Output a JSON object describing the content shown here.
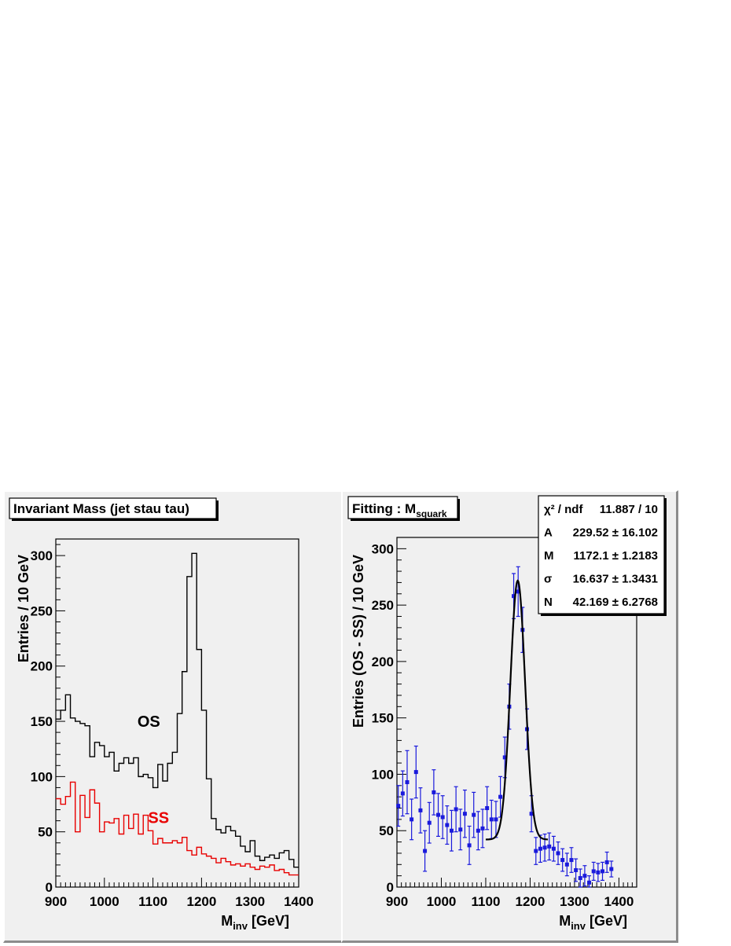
{
  "chart_data": [
    {
      "type": "step-histogram",
      "title": "Invariant Mass (jet stau tau)",
      "xlabel": "M",
      "xlabel_sub": "inv",
      "xlabel_unit": " [GeV]",
      "ylabel": "Entries / 10 GeV",
      "xlim": [
        900,
        1400
      ],
      "ylim": [
        0,
        315
      ],
      "xticks": [
        "900",
        "1000",
        "1100",
        "1200",
        "1300",
        "1400"
      ],
      "yticks": [
        "0",
        "50",
        "100",
        "150",
        "200",
        "250",
        "300"
      ],
      "bin_width": 10,
      "x_start": 900,
      "series": [
        {
          "name": "OS",
          "color": "#000000",
          "values": [
            152,
            160,
            174,
            153,
            150,
            148,
            146,
            118,
            131,
            128,
            118,
            122,
            105,
            112,
            117,
            112,
            117,
            100,
            102,
            99,
            90,
            111,
            96,
            112,
            122,
            157,
            195,
            281,
            302,
            215,
            160,
            98,
            62,
            52,
            49,
            55,
            51,
            46,
            37,
            32,
            42,
            28,
            24,
            27,
            29,
            26,
            31,
            33,
            25,
            18
          ]
        },
        {
          "name": "SS",
          "color": "#e80000",
          "values": [
            80,
            75,
            82,
            95,
            50,
            83,
            63,
            88,
            76,
            50,
            59,
            58,
            62,
            48,
            65,
            53,
            66,
            48,
            65,
            51,
            39,
            44,
            40,
            40,
            42,
            40,
            45,
            33,
            29,
            36,
            30,
            28,
            26,
            22,
            26,
            23,
            20,
            21,
            19,
            21,
            18,
            16,
            19,
            18,
            20,
            15,
            16,
            13,
            11,
            11
          ]
        }
      ],
      "labels": [
        {
          "text": "OS",
          "color": "#000000",
          "x": 1068,
          "y": 145
        },
        {
          "text": "SS",
          "color": "#e80000",
          "x": 1090,
          "y": 58
        }
      ]
    },
    {
      "type": "scatter-errorbar-fit",
      "title": "Fitting : M",
      "title_sub": "squark",
      "xlabel": "M",
      "xlabel_sub": "inv",
      "xlabel_unit": " [GeV]",
      "ylabel": "Entries (OS - SS) / 10 GeV",
      "xlim": [
        900,
        1440
      ],
      "ylim": [
        0,
        310
      ],
      "xticks": [
        "900",
        "1000",
        "1100",
        "1200",
        "1300",
        "1400"
      ],
      "yticks": [
        "0",
        "50",
        "100",
        "150",
        "200",
        "250",
        "300"
      ],
      "point_color": "#1a1adc",
      "points": [
        [
          903,
          72,
          18
        ],
        [
          913,
          83,
          20
        ],
        [
          923,
          93,
          28
        ],
        [
          933,
          60,
          18
        ],
        [
          943,
          102,
          23
        ],
        [
          953,
          68,
          20
        ],
        [
          963,
          32,
          18
        ],
        [
          973,
          57,
          18
        ],
        [
          983,
          84,
          20
        ],
        [
          993,
          64,
          19
        ],
        [
          1003,
          62,
          19
        ],
        [
          1013,
          55,
          17
        ],
        [
          1023,
          50,
          18
        ],
        [
          1033,
          69,
          20
        ],
        [
          1043,
          51,
          18
        ],
        [
          1053,
          65,
          21
        ],
        [
          1063,
          37,
          17
        ],
        [
          1073,
          64,
          20
        ],
        [
          1083,
          50,
          17
        ],
        [
          1093,
          52,
          17
        ],
        [
          1103,
          70,
          19
        ],
        [
          1113,
          60,
          17
        ],
        [
          1123,
          60,
          16
        ],
        [
          1133,
          80,
          18
        ],
        [
          1143,
          115,
          18
        ],
        [
          1153,
          160,
          20
        ],
        [
          1163,
          258,
          20
        ],
        [
          1173,
          262,
          22
        ],
        [
          1183,
          228,
          20
        ],
        [
          1193,
          140,
          18
        ],
        [
          1203,
          65,
          16
        ],
        [
          1213,
          32,
          12
        ],
        [
          1223,
          34,
          12
        ],
        [
          1233,
          35,
          12
        ],
        [
          1243,
          36,
          12
        ],
        [
          1253,
          34,
          11
        ],
        [
          1263,
          30,
          10
        ],
        [
          1273,
          24,
          10
        ],
        [
          1283,
          20,
          10
        ],
        [
          1293,
          24,
          11
        ],
        [
          1303,
          15,
          10
        ],
        [
          1313,
          8,
          8
        ],
        [
          1323,
          10,
          9
        ],
        [
          1333,
          4,
          6
        ],
        [
          1343,
          14,
          8
        ],
        [
          1353,
          13,
          8
        ],
        [
          1363,
          14,
          8
        ],
        [
          1373,
          22,
          9
        ],
        [
          1383,
          16,
          7
        ]
      ],
      "fit": {
        "function": "gaussian + constant",
        "A": 229.52,
        "M": 1172.1,
        "sigma": 16.637,
        "N": 42.169,
        "x_range": [
          1100,
          1240
        ],
        "color": "#000000"
      },
      "stats_box": [
        {
          "label": "χ² / ndf",
          "value": "11.887 / 10"
        },
        {
          "label": "A",
          "value": "229.52 ± 16.102"
        },
        {
          "label": "M",
          "value": "1172.1 ± 1.2183"
        },
        {
          "label": "σ",
          "value": "16.637 ± 1.3431"
        },
        {
          "label": "N",
          "value": "42.169 ± 6.2768"
        }
      ]
    }
  ]
}
